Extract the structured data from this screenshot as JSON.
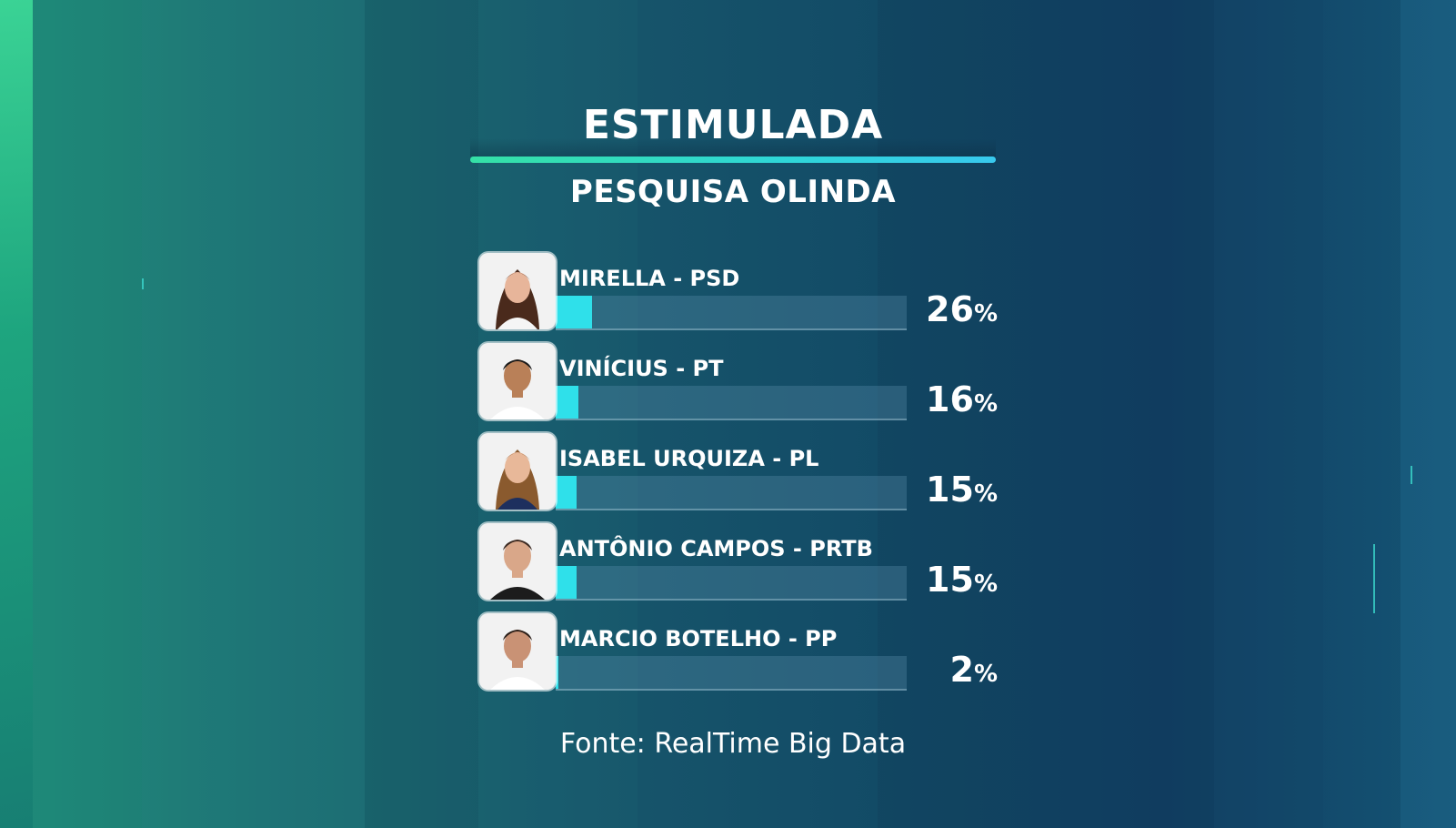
{
  "header": {
    "title": "ESTIMULADA",
    "subtitle": "PESQUISA OLINDA"
  },
  "chart_data": {
    "type": "bar",
    "title": "ESTIMULADA",
    "subtitle": "PESQUISA OLINDA",
    "orientation": "horizontal",
    "categories": [
      "MIRELLA - PSD",
      "VINÍCIUS - PT",
      "ISABEL URQUIZA - PL",
      "ANTÔNIO CAMPOS - PRTB",
      "MARCIO BOTELHO - PP"
    ],
    "values": [
      26,
      16,
      15,
      15,
      2
    ],
    "unit": "%",
    "xlim": [
      0,
      100
    ],
    "grid": false
  },
  "candidates": [
    {
      "name": "MIRELLA",
      "party": "PSD",
      "label": "MIRELLA - PSD",
      "value": 26,
      "pct_number": "26",
      "pct_sign": "%",
      "photo_icon": "woman-portrait-icon"
    },
    {
      "name": "VINÍCIUS",
      "party": "PT",
      "label": "VINÍCIUS - PT",
      "value": 16,
      "pct_number": "16",
      "pct_sign": "%",
      "photo_icon": "man-portrait-icon"
    },
    {
      "name": "ISABEL URQUIZA",
      "party": "PL",
      "label": "ISABEL URQUIZA - PL",
      "value": 15,
      "pct_number": "15",
      "pct_sign": "%",
      "photo_icon": "woman-portrait-icon"
    },
    {
      "name": "ANTÔNIO CAMPOS",
      "party": "PRTB",
      "label": "ANTÔNIO CAMPOS - PRTB",
      "value": 15,
      "pct_number": "15",
      "pct_sign": "%",
      "photo_icon": "man-portrait-icon"
    },
    {
      "name": "MARCIO BOTELHO",
      "party": "PP",
      "label": "MARCIO BOTELHO - PP",
      "value": 2,
      "pct_number": "2",
      "pct_sign": "%",
      "photo_icon": "man-portrait-icon"
    }
  ],
  "footer": {
    "source": "Fonte: RealTime Big Data"
  },
  "colors": {
    "bar_fill": "#2fe0ea",
    "bar_track": "#5a8caa",
    "accent_rule_start": "#35e0a6",
    "accent_rule_end": "#38c9ee",
    "text": "#ffffff"
  }
}
